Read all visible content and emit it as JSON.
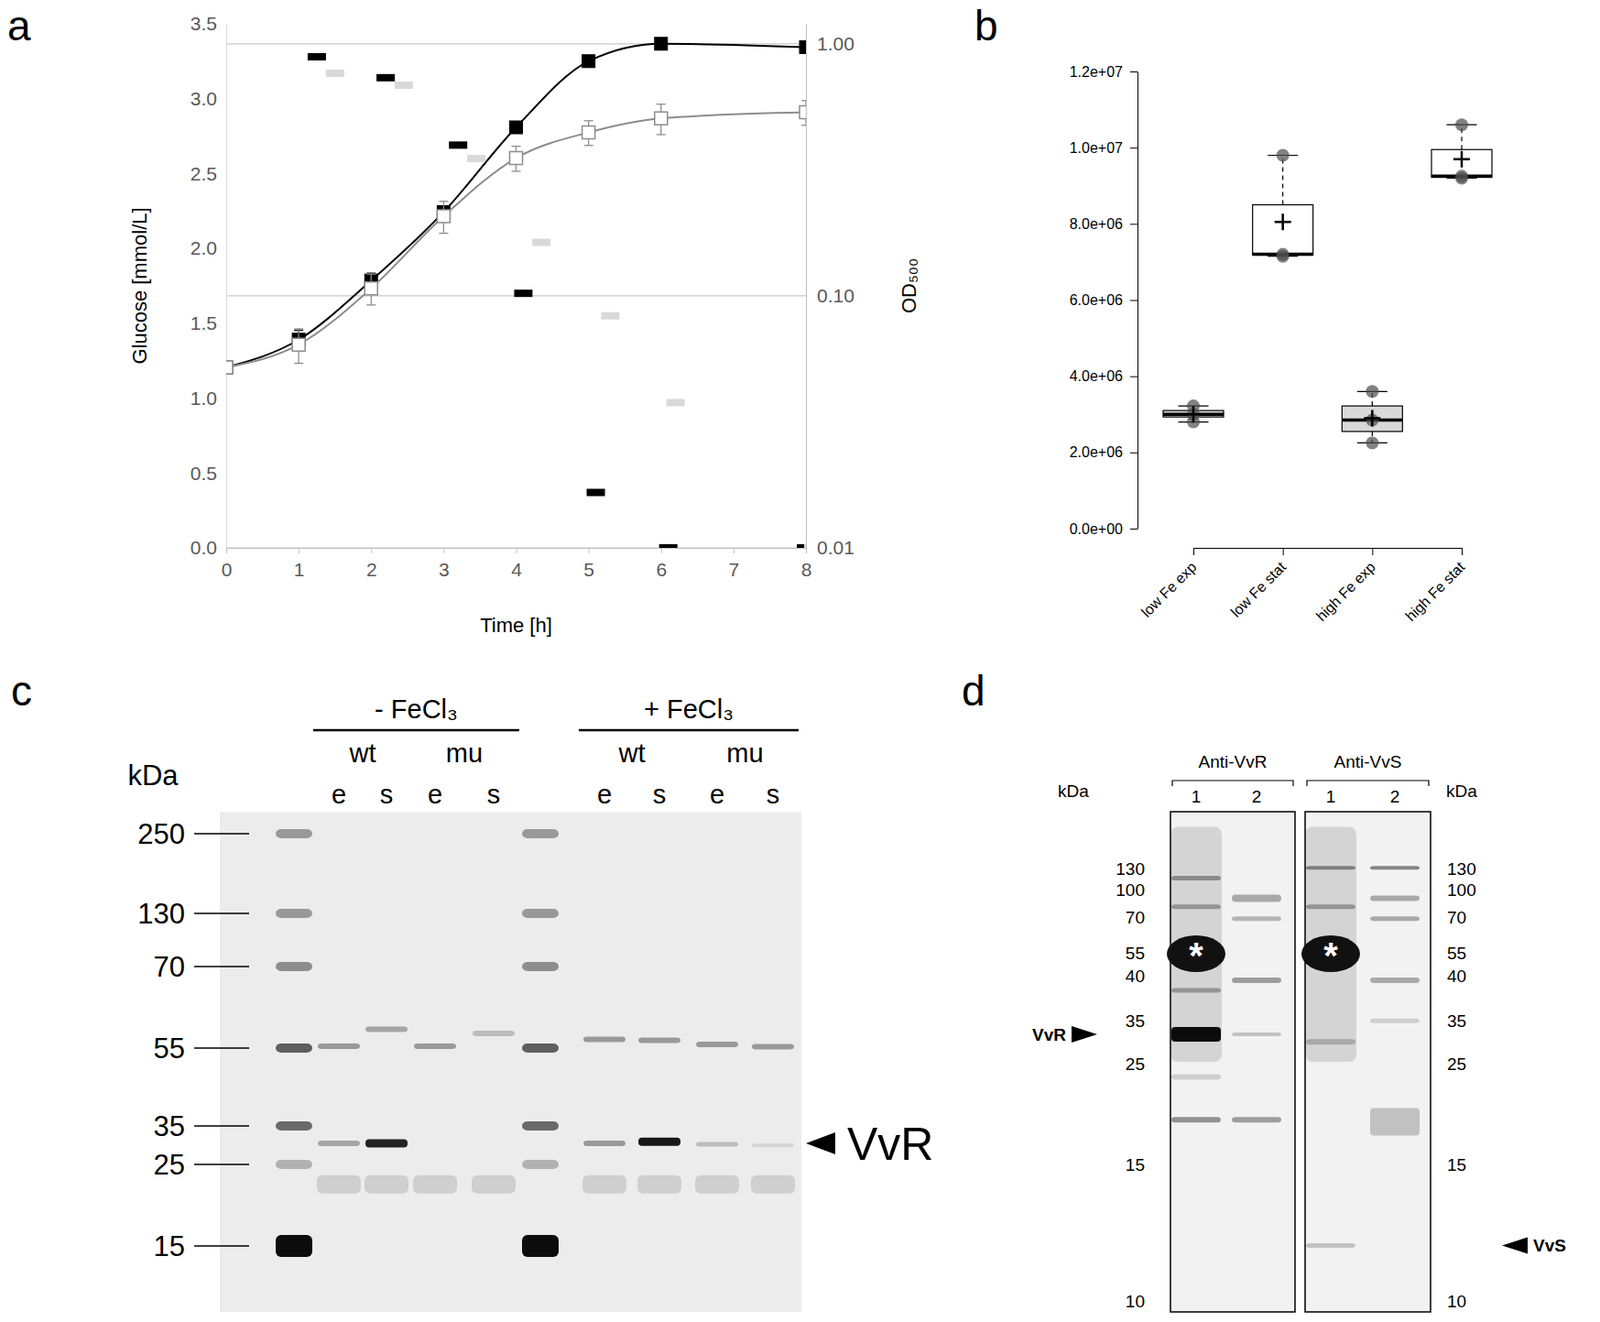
{
  "chart_data": [
    {
      "panel_label": "a",
      "type": "line",
      "x_label": "Time [h]",
      "y_label": "Glucose [mmol/L]",
      "y2_label": "OD₅₀₀",
      "xlim": [
        0,
        8
      ],
      "xticks": [
        0,
        1,
        2,
        3,
        4,
        5,
        6,
        7,
        8
      ],
      "ylim": [
        0,
        3.5
      ],
      "yticks": [
        {
          "value": 0,
          "label": "0.0"
        },
        0.5,
        {
          "value": 1,
          "label": "1.0"
        },
        1.5,
        {
          "value": 2,
          "label": "2.0"
        },
        2.5,
        {
          "value": 3,
          "label": "3.0"
        },
        3.5
      ],
      "y2lim": [
        0.01,
        1.2
      ],
      "y2ticks": [
        0.01,
        {
          "value": 0.1,
          "label": "0.10"
        },
        {
          "value": 1,
          "label": "1.00"
        }
      ],
      "log": "y2",
      "grid": true,
      "series": [
        {
          "type": "line",
          "axis": "y2",
          "color": "#000000",
          "marker": "square",
          "x": [
            0,
            1,
            2,
            3,
            4,
            5,
            6,
            8
          ],
          "values": [
            0.052,
            0.067,
            0.115,
            0.215,
            0.466,
            0.853,
            1.0,
            0.97
          ],
          "errors": [
            0,
            0.006,
            0.008,
            0.012,
            0.02,
            0.03,
            0.05,
            0.03
          ]
        },
        {
          "type": "line",
          "axis": "y2",
          "color": "#8c8c8c",
          "marker": "open-square",
          "x": [
            0,
            1,
            2,
            3,
            4,
            5,
            6,
            8
          ],
          "values": [
            0.052,
            0.064,
            0.107,
            0.207,
            0.352,
            0.445,
            0.506,
            0.535
          ],
          "errors": [
            0,
            0.01,
            0.015,
            0.03,
            0.04,
            0.05,
            0.07,
            0.06
          ]
        },
        {
          "type": "scatter",
          "axis": "y",
          "color": "#000000",
          "marker": "dash",
          "x": [
            1.25,
            2.2,
            3.2,
            4.1,
            5.1,
            6.1,
            8.0
          ],
          "values": [
            3.28,
            3.14,
            2.69,
            1.7,
            0.37,
            0.0,
            0.0
          ]
        },
        {
          "type": "scatter",
          "axis": "y",
          "color": "#d9d9d9",
          "marker": "dash",
          "x": [
            1.5,
            2.45,
            3.45,
            4.35,
            5.3,
            6.2,
            8.1
          ],
          "values": [
            3.17,
            3.09,
            2.6,
            2.04,
            1.55,
            0.97,
            0.0
          ]
        }
      ]
    },
    {
      "panel_label": "b",
      "type": "box",
      "categories": [
        "low Fe exp",
        "low Fe stat",
        "high Fe exp",
        "high Fe stat"
      ],
      "ylim": [
        0,
        12000000
      ],
      "yticks": [
        {
          "value": 0,
          "label": "0.0e+00"
        },
        {
          "value": 2000000,
          "label": "2.0e+06"
        },
        {
          "value": 4000000,
          "label": "4.0e+06"
        },
        {
          "value": 6000000,
          "label": "6.0e+06"
        },
        {
          "value": 8000000,
          "label": "8.0e+06"
        },
        {
          "value": 10000000,
          "label": "1.0e+07"
        },
        {
          "value": 12000000,
          "label": "1.2e+07"
        }
      ],
      "colors": [
        "#d9d9d9",
        "#ffffff",
        "#d9d9d9",
        "#ffffff"
      ],
      "boxes": [
        {
          "min": 2800000,
          "q1": 2930000,
          "median": 3000000,
          "q3": 3100000,
          "max": 3220000,
          "mean": 3000000,
          "points": [
            2800000,
            3000000,
            3220000
          ]
        },
        {
          "min": 7150000,
          "q1": 7180000,
          "median": 7200000,
          "q3": 8500000,
          "max": 9800000,
          "mean": 8050000,
          "points": [
            7150000,
            7200000,
            9800000
          ]
        },
        {
          "min": 2250000,
          "q1": 2550000,
          "median": 2850000,
          "q3": 3220000,
          "max": 3600000,
          "mean": 2900000,
          "points": [
            2250000,
            2850000,
            3600000
          ]
        },
        {
          "min": 9200000,
          "q1": 9220000,
          "median": 9250000,
          "q3": 9950000,
          "max": 10600000,
          "mean": 9700000,
          "points": [
            9200000,
            9250000,
            10600000
          ]
        }
      ]
    }
  ],
  "blots": [
    {
      "panel_label": "c",
      "unit_label": "kDa",
      "markers": [
        250,
        130,
        70,
        55,
        35,
        25,
        15
      ],
      "groups": [
        {
          "label": "- FeCl₃",
          "strains": [
            {
              "label": "wt",
              "lanes": [
                "e",
                "s"
              ]
            },
            {
              "label": "mu",
              "lanes": [
                "e",
                "s"
              ]
            }
          ]
        },
        {
          "label": "+ FeCl₃",
          "strains": [
            {
              "label": "wt",
              "lanes": [
                "e",
                "s"
              ]
            },
            {
              "label": "mu",
              "lanes": [
                "e",
                "s"
              ]
            }
          ]
        }
      ],
      "target_label": "VvR"
    },
    {
      "panel_label": "d",
      "unit_label": "kDa",
      "markers": [
        130,
        100,
        70,
        55,
        40,
        35,
        25,
        15,
        10
      ],
      "blots": [
        {
          "label": "Anti-VvR",
          "lanes": [
            "1",
            "2"
          ],
          "target_label": "VvR"
        },
        {
          "label": "Anti-VvS",
          "lanes": [
            "1",
            "2"
          ],
          "target_label": "VvS"
        }
      ],
      "highlight_label": "*"
    }
  ]
}
